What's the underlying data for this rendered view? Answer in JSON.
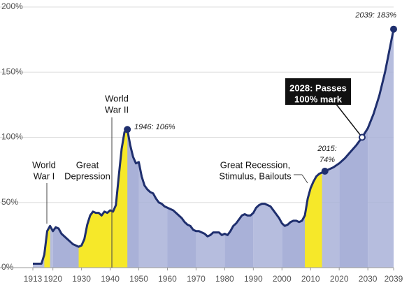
{
  "chart_data": {
    "type": "area",
    "x": [
      1913,
      1915,
      1916,
      1917,
      1918,
      1919,
      1920,
      1921,
      1922,
      1923,
      1924,
      1925,
      1926,
      1927,
      1928,
      1929,
      1930,
      1931,
      1932,
      1933,
      1934,
      1935,
      1936,
      1937,
      1938,
      1939,
      1940,
      1941,
      1942,
      1943,
      1944,
      1945,
      1946,
      1947,
      1948,
      1949,
      1950,
      1951,
      1952,
      1953,
      1954,
      1955,
      1956,
      1957,
      1958,
      1959,
      1960,
      1961,
      1962,
      1963,
      1964,
      1965,
      1966,
      1967,
      1968,
      1969,
      1970,
      1971,
      1972,
      1973,
      1974,
      1975,
      1976,
      1977,
      1978,
      1979,
      1980,
      1981,
      1982,
      1983,
      1984,
      1985,
      1986,
      1987,
      1988,
      1989,
      1990,
      1991,
      1992,
      1993,
      1994,
      1995,
      1996,
      1997,
      1998,
      1999,
      2000,
      2001,
      2002,
      2003,
      2004,
      2005,
      2006,
      2007,
      2008,
      2009,
      2010,
      2011,
      2012,
      2013,
      2014,
      2015,
      2016,
      2018,
      2020,
      2022,
      2024,
      2026,
      2028,
      2030,
      2032,
      2034,
      2036,
      2038,
      2039
    ],
    "series": [
      {
        "color": "#1f2f6e",
        "fill": "#a9b1d8",
        "values": [
          3,
          3,
          3,
          10,
          28,
          32,
          28,
          31,
          30,
          26,
          24,
          22,
          20,
          18,
          17,
          16,
          17,
          22,
          33,
          40,
          43,
          42,
          42,
          40,
          43,
          42,
          44,
          43,
          48,
          70,
          91,
          104,
          106,
          94,
          85,
          80,
          81,
          70,
          63,
          60,
          58,
          57,
          53,
          50,
          49,
          47,
          46,
          45,
          44,
          42,
          40,
          38,
          35,
          33,
          32,
          29,
          28,
          28,
          27,
          26,
          24,
          25,
          27,
          27,
          27,
          25,
          26,
          25,
          28,
          32,
          34,
          37,
          40,
          41,
          40,
          40,
          42,
          46,
          48,
          49,
          49,
          48,
          47,
          44,
          41,
          38,
          34,
          32,
          33,
          35,
          36,
          36,
          35,
          36,
          40,
          53,
          61,
          66,
          70,
          72,
          73,
          74,
          75,
          77,
          80,
          84,
          89,
          94,
          100,
          107,
          118,
          132,
          150,
          172,
          183
        ]
      }
    ],
    "highlight_color": "#f6e829",
    "highlights": [
      [
        1917,
        1919
      ],
      [
        1929,
        1941
      ],
      [
        1941,
        1946
      ],
      [
        2008,
        2014
      ]
    ],
    "xlim": [
      1913,
      2039
    ],
    "xticks": [
      1913,
      1920,
      1930,
      1940,
      1950,
      1960,
      1970,
      1980,
      1990,
      2000,
      2010,
      2020,
      2030,
      2039
    ],
    "ylim": [
      0,
      200
    ],
    "yticks": [
      {
        "value": 0,
        "label": "0%"
      },
      {
        "value": 50,
        "label": "50%"
      },
      {
        "value": 100,
        "label": "100%"
      },
      {
        "value": 150,
        "label": "150%"
      },
      {
        "value": 200,
        "label": "200%"
      }
    ],
    "grid": true,
    "annotations": [
      {
        "lines": [
          "World",
          "War I"
        ]
      },
      {
        "lines": [
          "Great",
          "Depression"
        ]
      },
      {
        "lines": [
          "World",
          "War II"
        ]
      },
      {
        "lines": [
          "1946: 106%"
        ],
        "x": 1946
      },
      {
        "lines": [
          "Great Recession,",
          "Stimulus, Bailouts"
        ]
      },
      {
        "lines": [
          "2015:",
          "74%"
        ],
        "x": 2015
      },
      {
        "lines": [
          "2028: Passes",
          "100% mark"
        ],
        "x": 2028
      },
      {
        "lines": [
          "2039: 183%"
        ],
        "x": 2039
      }
    ]
  }
}
